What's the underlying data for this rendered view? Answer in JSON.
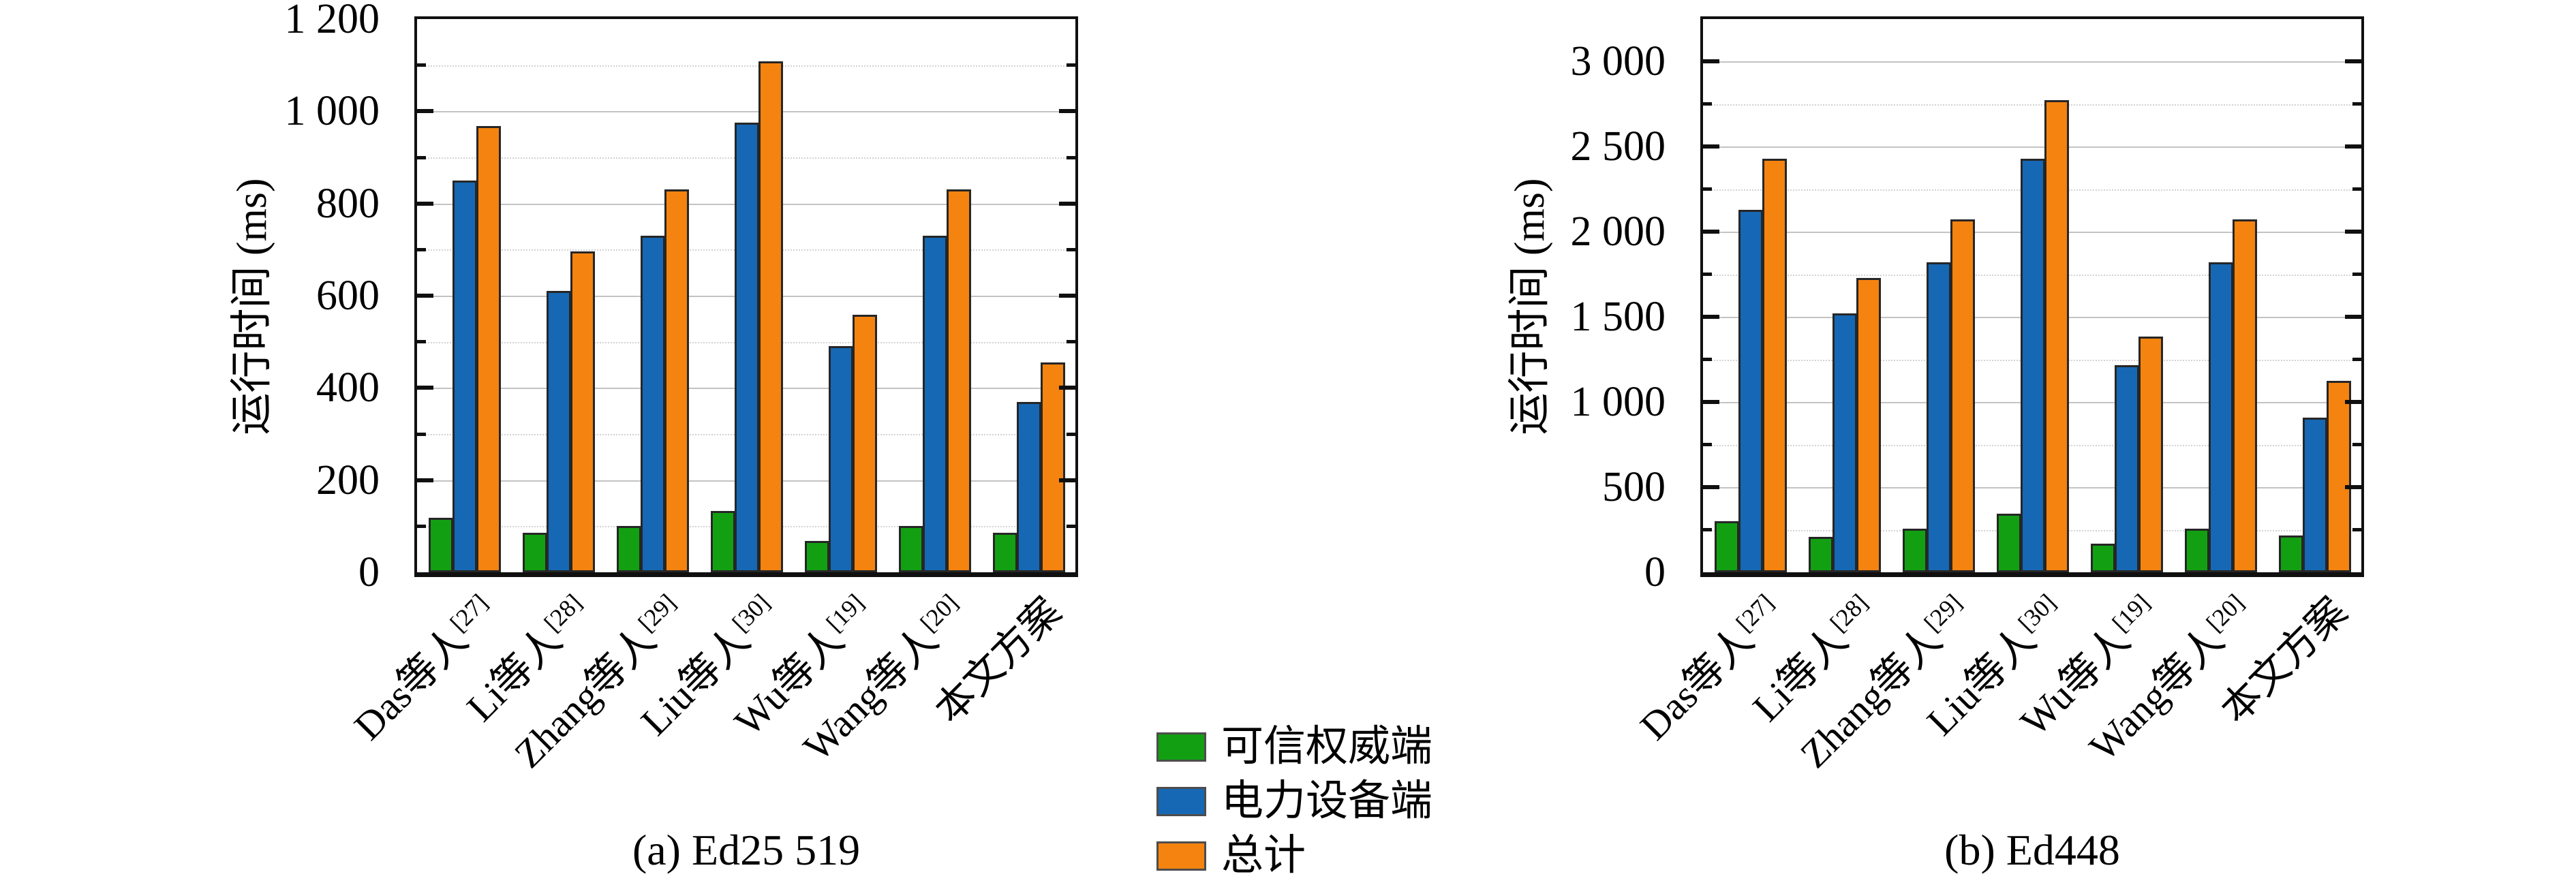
{
  "figure": {
    "background": "#ffffff",
    "colors": {
      "trusted": "#12a012",
      "device": "#1668b4",
      "total": "#f5830f"
    },
    "legend": {
      "items": [
        {
          "label": "可信权威端",
          "color_key": "trusted"
        },
        {
          "label": "电力设备端",
          "color_key": "device"
        },
        {
          "label": "总计",
          "color_key": "total"
        }
      ]
    }
  },
  "chart_data": [
    {
      "type": "bar",
      "caption": "(a) Ed25 519",
      "ylabel": "运行时间 (ms)",
      "xlabel": "",
      "ylim": [
        0,
        1200
      ],
      "grid": "major-solid, minor-dotted",
      "legend_position": "below-center-of-figure",
      "yticks": [
        {
          "value": 0,
          "label": "0"
        },
        {
          "value": 200,
          "label": "200"
        },
        {
          "value": 400,
          "label": "400"
        },
        {
          "value": 600,
          "label": "600"
        },
        {
          "value": 800,
          "label": "800"
        },
        {
          "value": 1000,
          "label": "1 000"
        },
        {
          "value": 1200,
          "label": "1 200"
        }
      ],
      "ymajor_gridlines": [
        200,
        400,
        600,
        800,
        1000
      ],
      "yminor_gridlines": [
        100,
        300,
        500,
        700,
        900,
        1100
      ],
      "ymajor_tickmarks": [
        200,
        400,
        600,
        800,
        1000
      ],
      "yminor_tickmarks": [
        100,
        300,
        500,
        700,
        900,
        1100
      ],
      "categories": [
        {
          "name": "Das等人",
          "ref": "[27]"
        },
        {
          "name": "Li等人",
          "ref": "[28]"
        },
        {
          "name": "Zhang等人",
          "ref": "[29]"
        },
        {
          "name": "Liu等人",
          "ref": "[30]"
        },
        {
          "name": "Wu等人",
          "ref": "[19]"
        },
        {
          "name": "Wang等人",
          "ref": "[20]"
        },
        {
          "name": "本文方案",
          "ref": ""
        }
      ],
      "series": [
        {
          "name": "可信权威端",
          "color_key": "trusted",
          "values": [
            118,
            86,
            100,
            133,
            68,
            100,
            85
          ]
        },
        {
          "name": "电力设备端",
          "color_key": "device",
          "values": [
            850,
            610,
            730,
            975,
            490,
            730,
            370
          ]
        },
        {
          "name": "总计",
          "color_key": "total",
          "values": [
            968,
            696,
            830,
            1108,
            558,
            830,
            455
          ]
        }
      ]
    },
    {
      "type": "bar",
      "caption": "(b) Ed448",
      "ylabel": "运行时间 (ms)",
      "xlabel": "",
      "ylim": [
        0,
        3250
      ],
      "grid": "major-solid, minor-dotted",
      "legend_position": "below-center-of-figure",
      "yticks": [
        {
          "value": 0,
          "label": "0"
        },
        {
          "value": 500,
          "label": "500"
        },
        {
          "value": 1000,
          "label": "1 000"
        },
        {
          "value": 1500,
          "label": "1 500"
        },
        {
          "value": 2000,
          "label": "2 000"
        },
        {
          "value": 2500,
          "label": "2 500"
        },
        {
          "value": 3000,
          "label": "3 000"
        }
      ],
      "ymajor_gridlines": [
        500,
        1000,
        1500,
        2000,
        2500,
        3000
      ],
      "yminor_gridlines": [
        250,
        750,
        1250,
        1750,
        2250,
        2750
      ],
      "ymajor_tickmarks": [
        500,
        1000,
        1500,
        2000,
        2500,
        3000
      ],
      "yminor_tickmarks": [
        250,
        750,
        1250,
        1750,
        2250,
        2750
      ],
      "categories": [
        {
          "name": "Das等人",
          "ref": "[27]"
        },
        {
          "name": "Li等人",
          "ref": "[28]"
        },
        {
          "name": "Zhang等人",
          "ref": "[29]"
        },
        {
          "name": "Liu等人",
          "ref": "[30]"
        },
        {
          "name": "Wu等人",
          "ref": "[19]"
        },
        {
          "name": "Wang等人",
          "ref": "[20]"
        },
        {
          "name": "本文方案",
          "ref": ""
        }
      ],
      "series": [
        {
          "name": "可信权威端",
          "color_key": "trusted",
          "values": [
            300,
            210,
            255,
            345,
            170,
            255,
            215
          ]
        },
        {
          "name": "电力设备端",
          "color_key": "device",
          "values": [
            2130,
            1520,
            1820,
            2430,
            1215,
            1820,
            910
          ]
        },
        {
          "name": "总计",
          "color_key": "total",
          "values": [
            2430,
            1730,
            2075,
            2775,
            1385,
            2075,
            1125
          ]
        }
      ]
    }
  ]
}
